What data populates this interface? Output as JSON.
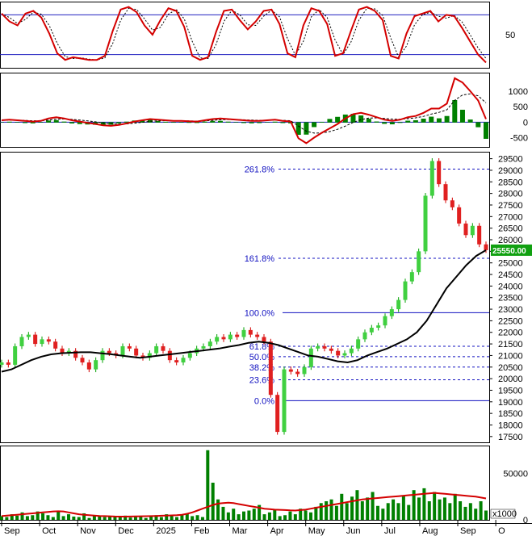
{
  "chart_data": [
    {
      "type": "line",
      "panel": "oscillator",
      "y_ticks": [
        "50"
      ],
      "levels": [
        80,
        20
      ],
      "series": [
        {
          "color": "#d40000",
          "values": [
            82,
            70,
            64,
            82,
            86,
            76,
            52,
            22,
            12,
            16,
            14,
            12,
            12,
            18,
            56,
            88,
            92,
            84,
            64,
            50,
            72,
            90,
            86,
            62,
            18,
            12,
            16,
            54,
            86,
            88,
            72,
            58,
            70,
            86,
            88,
            66,
            22,
            16,
            64,
            90,
            86,
            66,
            18,
            22,
            56,
            88,
            92,
            86,
            72,
            18,
            14,
            52,
            78,
            82,
            86,
            70,
            80,
            78,
            60,
            40,
            20,
            8
          ],
          "lag_color": "#000000"
        }
      ]
    },
    {
      "type": "line",
      "panel": "macd",
      "y_ticks": [
        "1000",
        "500",
        "0",
        "-500"
      ],
      "series": [
        {
          "color": "#d40000",
          "values": [
            60,
            80,
            60,
            40,
            20,
            40,
            120,
            160,
            120,
            60,
            20,
            -20,
            -60,
            -100,
            -120,
            -90,
            -40,
            20,
            60,
            100,
            80,
            60,
            40,
            40,
            30,
            20,
            60,
            100,
            120,
            100,
            80,
            60,
            40,
            40,
            60,
            80,
            40,
            20,
            -520,
            -680,
            -500,
            -340,
            -200,
            -60,
            120,
            260,
            300,
            240,
            160,
            80,
            40,
            80,
            160,
            200,
            300,
            440,
            440,
            600,
            1420,
            1280,
            1000,
            700,
            100
          ],
          "signal_color": "#000000",
          "histogram_color": "#008000"
        }
      ]
    },
    {
      "type": "line",
      "panel": "price",
      "x_ticks": [
        "Sep",
        "Oct",
        "Nov",
        "Dec",
        "2025",
        "Feb",
        "Mar",
        "Apr",
        "May",
        "Jun",
        "Jul",
        "Aug",
        "Sep",
        "O"
      ],
      "y_ticks": [
        "29500",
        "29000",
        "28500",
        "28000",
        "27500",
        "27000",
        "26500",
        "26000",
        "25500",
        "25000",
        "24500",
        "24000",
        "23500",
        "23000",
        "22500",
        "22000",
        "21500",
        "21000",
        "20500",
        "20000",
        "19500",
        "19000",
        "18500",
        "18000",
        "17500"
      ],
      "last_price": "25550.00",
      "series": [
        {
          "name": "",
          "color": "#00a000",
          "values": [
            20700,
            20600,
            21400,
            21800,
            21900,
            21500,
            21700,
            21600,
            21300,
            21100,
            21200,
            20900,
            20700,
            20400,
            20800,
            21200,
            21100,
            21000,
            21400,
            21300,
            21000,
            20900,
            21100,
            21400,
            21200,
            20800,
            20700,
            20900,
            21100,
            21300,
            21400,
            21600,
            21800,
            21700,
            21900,
            21800,
            22100,
            21900,
            21800,
            21600,
            19300,
            17700,
            20400,
            20300,
            20200,
            20500,
            21300,
            21400,
            21300,
            21200,
            21000,
            21100,
            21300,
            21700,
            22000,
            22200,
            22300,
            22700,
            23000,
            23400,
            24200,
            24600,
            25500,
            27900,
            29400,
            28400,
            27700,
            27400,
            26700,
            26200,
            26600,
            25800,
            25550
          ]
        },
        {
          "name": "",
          "color": "#000000",
          "values": [
            20300,
            20400,
            20600,
            20800,
            20950,
            21050,
            21100,
            21120,
            21140,
            21140,
            21100,
            21060,
            21000,
            20950,
            20900,
            20950,
            21000,
            21050,
            21100,
            21150,
            21200,
            21250,
            21300,
            21380,
            21450,
            21550,
            21600,
            21550,
            21450,
            21300,
            21150,
            21000,
            20950,
            20850,
            20750,
            20700,
            20800,
            21000,
            21150,
            21300,
            21500,
            21700,
            22000,
            22500,
            23200,
            23900,
            24400,
            24900,
            25300,
            25550
          ]
        }
      ],
      "fibonacci": [
        {
          "label": "261.8%",
          "value": 29050
        },
        {
          "label": "161.8%",
          "value": 25200
        },
        {
          "label": "100.0%",
          "value": 22850
        },
        {
          "label": "61.8%",
          "value": 21400
        },
        {
          "label": "50.0%",
          "value": 20950
        },
        {
          "label": "38.2%",
          "value": 20500
        },
        {
          "label": "23.6%",
          "value": 19950
        },
        {
          "label": "0.0%",
          "value": 19050
        }
      ]
    },
    {
      "type": "bar",
      "panel": "volume",
      "y_ticks": [
        "50000",
        "0"
      ],
      "unit_label": "x1000",
      "bar_color": "#008000",
      "ma_color": "#d40000",
      "values": [
        4000,
        3000,
        6000,
        4500,
        8000,
        4000,
        5000,
        9000,
        7000,
        5000,
        3000,
        9000,
        4000,
        6000,
        3500,
        3000,
        7000,
        2000,
        5000,
        4000,
        3000,
        4000,
        3500,
        3000,
        4500,
        2500,
        3000,
        4000,
        2000,
        3500,
        5000,
        3000,
        6000,
        4000,
        3000,
        5000,
        7000,
        4000,
        5000,
        3000,
        75000,
        40000,
        22000,
        14000,
        8000,
        12000,
        6000,
        9000,
        10000,
        12000,
        16000,
        6000,
        8000,
        11000,
        4000,
        5000,
        9000,
        6000,
        12000,
        10000,
        8000,
        14000,
        18000,
        20000,
        22000,
        15000,
        28000,
        18000,
        25000,
        32000,
        20000,
        24000,
        30000,
        15000,
        12000,
        18000,
        22000,
        18000,
        26000,
        16000,
        32000,
        24000,
        34000,
        20000,
        30000,
        22000,
        24000,
        18000,
        28000,
        20000,
        14000,
        18000,
        12000,
        20000,
        10000
      ],
      "ma": [
        4000,
        4500,
        5000,
        5500,
        6000,
        6500,
        7000,
        7500,
        8000,
        8500,
        9000,
        9200,
        9000,
        8000,
        7000,
        6000,
        5500,
        5000,
        4500,
        4200,
        4000,
        3800,
        3600,
        3500,
        3500,
        3600,
        3700,
        3800,
        3900,
        4000,
        4200,
        4400,
        4600,
        4800,
        5000,
        5500,
        6500,
        8000,
        10000,
        12000,
        14000,
        16000,
        17500,
        18000,
        18500,
        18000,
        17000,
        16000,
        15000,
        14000,
        13000,
        12000,
        11500,
        11000,
        10800,
        10500,
        10200,
        10000,
        10500,
        11000,
        12000,
        13000,
        14000,
        15000,
        16000,
        17000,
        18000,
        19000,
        20000,
        21000,
        22000,
        22500,
        23000,
        23500,
        24000,
        24500,
        25000,
        25500,
        26000,
        26500,
        27000,
        27500,
        28000,
        28500,
        29000,
        28500,
        28000,
        27500,
        27000,
        26500,
        26000,
        25500,
        25000,
        24000,
        23000
      ]
    }
  ]
}
